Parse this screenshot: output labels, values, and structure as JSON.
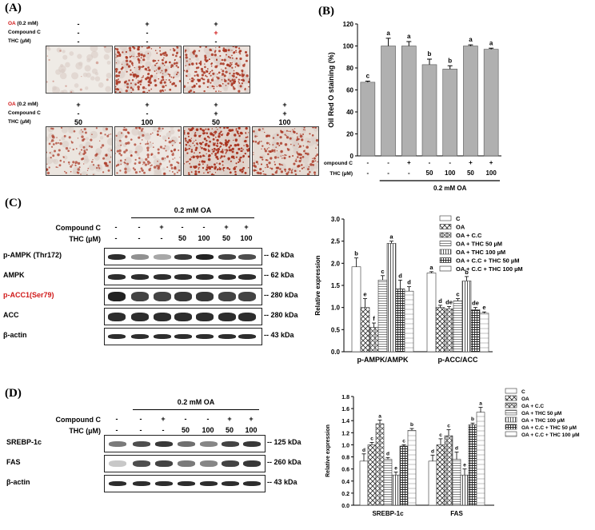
{
  "panels": {
    "A": {
      "label": "(A)",
      "oa_word": "OA",
      "oa_conc": "(0.2 mM)",
      "row_labels": [
        "Compound C",
        "THC (µM)"
      ],
      "top_conditions": [
        {
          "oa": "-",
          "cc": "-",
          "thc": "-"
        },
        {
          "oa": "+",
          "cc": "-",
          "thc": "-"
        },
        {
          "oa": "+",
          "cc": "+",
          "thc": "-"
        }
      ],
      "bottom_conditions": [
        {
          "oa": "+",
          "cc": "-",
          "thc": "50"
        },
        {
          "oa": "+",
          "cc": "-",
          "thc": "100"
        },
        {
          "oa": "+",
          "cc": "+",
          "thc": "50"
        },
        {
          "oa": "+",
          "cc": "+",
          "thc": "100"
        }
      ]
    },
    "B": {
      "label": "(B)"
    },
    "C": {
      "label": "(C)",
      "treatment_header": "0.2 mM OA",
      "row_labels": [
        "Compound C",
        "THC (µM)"
      ],
      "compound_c": [
        "-",
        "-",
        "+",
        "-",
        "-",
        "+",
        "+"
      ],
      "thc": [
        "-",
        "-",
        "-",
        "50",
        "100",
        "50",
        "100"
      ],
      "blots": [
        {
          "name": "p-AMPK (Thr172)",
          "kda": "-- 62 kDa"
        },
        {
          "name": "AMPK",
          "kda": "-- 62 kDa"
        },
        {
          "name": "p-ACC1(Ser79)",
          "kda": "-- 280 kDa",
          "color": "#d01818"
        },
        {
          "name": "ACC",
          "kda": "-- 280 kDa"
        },
        {
          "name": "β-actin",
          "kda": "-- 43 kDa"
        }
      ]
    },
    "D": {
      "label": "(D)",
      "treatment_header": "0.2 mM OA",
      "row_labels": [
        "Compound C",
        "THC (µM)"
      ],
      "compound_c": [
        "-",
        "-",
        "+",
        "-",
        "-",
        "+",
        "+"
      ],
      "thc": [
        "-",
        "-",
        "-",
        "50",
        "100",
        "50",
        "100"
      ],
      "blots": [
        {
          "name": "SREBP-1c",
          "kda": "-- 125 kDa"
        },
        {
          "name": "FAS",
          "kda": "-- 260 kDa"
        },
        {
          "name": "β-actin",
          "kda": "-- 43 kDa"
        }
      ]
    }
  },
  "chart_data": [
    {
      "id": "B",
      "type": "bar",
      "ylabel": "Oil Red O staining (%)",
      "ylim": [
        0,
        120
      ],
      "yticks": [
        0,
        20,
        40,
        60,
        80,
        100,
        120
      ],
      "values": [
        67,
        100,
        100,
        83,
        79,
        100,
        97
      ],
      "errors": [
        1,
        7,
        4,
        5,
        3,
        1,
        1
      ],
      "letters": [
        "c",
        "a",
        "a",
        "b",
        "b",
        "a",
        "a"
      ],
      "compound_c": [
        "-",
        "-",
        "+",
        "-",
        "-",
        "+",
        "+"
      ],
      "thc": [
        "-",
        "-",
        "-",
        "50",
        "100",
        "50",
        "100"
      ],
      "row_labels": [
        "Compound C",
        "THC (µM)"
      ],
      "group_label": "0.2 mM OA",
      "color": "#b0b0b0"
    },
    {
      "id": "C",
      "type": "bar",
      "ylabel": "Relative expression",
      "ylim": [
        0,
        3.0
      ],
      "yticks": [
        0.0,
        0.5,
        1.0,
        1.5,
        2.0,
        2.5,
        3.0
      ],
      "categories": [
        "p-AMPK/AMPK",
        "p-ACC/ACC"
      ],
      "legend": [
        "C",
        "OA",
        "OA + C.C",
        "OA + THC 50 µM",
        "OA + THC 100 µM",
        "OA + C.C + THC 50 µM",
        "OA + C.C + THC 100 µM"
      ],
      "series_values": [
        [
          1.92,
          1.78
        ],
        [
          1.0,
          1.0
        ],
        [
          0.55,
          0.97
        ],
        [
          1.62,
          1.15
        ],
        [
          2.45,
          1.6
        ],
        [
          1.42,
          0.95
        ],
        [
          1.37,
          0.87
        ]
      ],
      "errors": [
        [
          0.2,
          0.03
        ],
        [
          0.2,
          0.05
        ],
        [
          0.1,
          0.05
        ],
        [
          0.1,
          0.05
        ],
        [
          0.05,
          0.1
        ],
        [
          0.2,
          0.05
        ],
        [
          0.1,
          0.03
        ]
      ],
      "letters": [
        [
          "b",
          "a"
        ],
        [
          "e",
          "d"
        ],
        [
          "f",
          "de"
        ],
        [
          "c",
          "c"
        ],
        [
          "a",
          "b"
        ],
        [
          "d",
          "de"
        ],
        [
          "d",
          "e"
        ]
      ]
    },
    {
      "id": "D",
      "type": "bar",
      "ylabel": "Relative expression",
      "ylim": [
        0,
        1.8
      ],
      "yticks": [
        0.0,
        0.2,
        0.4,
        0.6,
        0.8,
        1.0,
        1.2,
        1.4,
        1.6,
        1.8
      ],
      "categories": [
        "SREBP-1c",
        "FAS"
      ],
      "legend": [
        "C",
        "OA",
        "OA + C.C",
        "OA + THC 50 µM",
        "OA + THC 100 µM",
        "OA + C.C + THC 50 µM",
        "OA + C.C + THC 100 µM"
      ],
      "series_values": [
        [
          0.73,
          0.73
        ],
        [
          1.0,
          1.0
        ],
        [
          1.35,
          1.15
        ],
        [
          0.76,
          0.76
        ],
        [
          0.5,
          0.5
        ],
        [
          0.98,
          1.33
        ],
        [
          1.24,
          1.54
        ]
      ],
      "errors": [
        [
          0.12,
          0.1
        ],
        [
          0.04,
          0.1
        ],
        [
          0.06,
          0.1
        ],
        [
          0.03,
          0.12
        ],
        [
          0.05,
          0.1
        ],
        [
          0.02,
          0.03
        ],
        [
          0.03,
          0.08
        ]
      ],
      "letters": [
        [
          "d",
          "d"
        ],
        [
          "c",
          "c"
        ],
        [
          "a",
          "c"
        ],
        [
          "d",
          "d"
        ],
        [
          "e",
          "e"
        ],
        [
          "c",
          "b"
        ],
        [
          "b",
          "a"
        ]
      ]
    }
  ]
}
